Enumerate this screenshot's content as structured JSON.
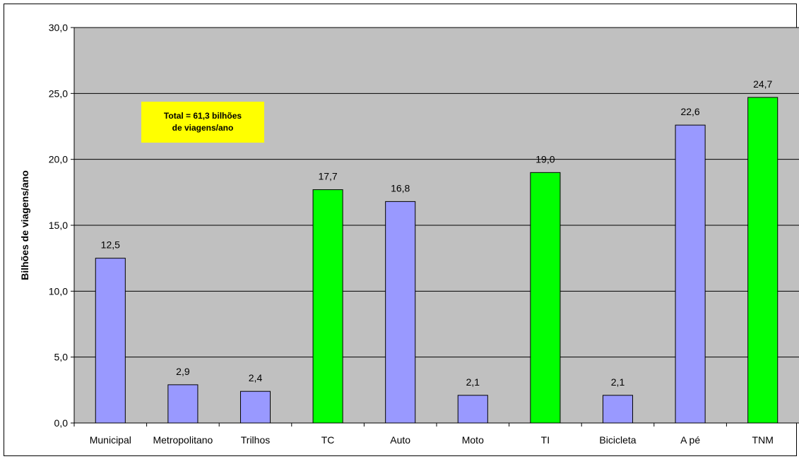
{
  "chart_data": {
    "type": "bar",
    "ylabel": "Bilhões de viagens/ano",
    "xlabel": "",
    "ylim": [
      0,
      30
    ],
    "yticks": [
      "0,0",
      "5,0",
      "10,0",
      "15,0",
      "20,0",
      "25,0",
      "30,0"
    ],
    "categories": [
      "Municipal",
      "Metropolitano",
      "Trilhos",
      "TC",
      "Auto",
      "Moto",
      "TI",
      "Bicicleta",
      "A pé",
      "TNM"
    ],
    "values": [
      12.5,
      2.9,
      2.4,
      17.7,
      16.8,
      2.1,
      19.0,
      2.1,
      22.6,
      24.7
    ],
    "value_labels": [
      "12,5",
      "2,9",
      "2,4",
      "17,7",
      "16,8",
      "2,1",
      "19,0",
      "2,1",
      "22,6",
      "24,7"
    ],
    "bar_colors": [
      "#9999ff",
      "#9999ff",
      "#9999ff",
      "#00ff00",
      "#9999ff",
      "#9999ff",
      "#00ff00",
      "#9999ff",
      "#9999ff",
      "#00ff00"
    ],
    "plot_background": "#c0c0c0",
    "annotation": {
      "line1": "Total = 61,3 bilhões",
      "line2": "de viagens/ano",
      "background": "#ffff00"
    },
    "grid": true,
    "legend": "none"
  }
}
